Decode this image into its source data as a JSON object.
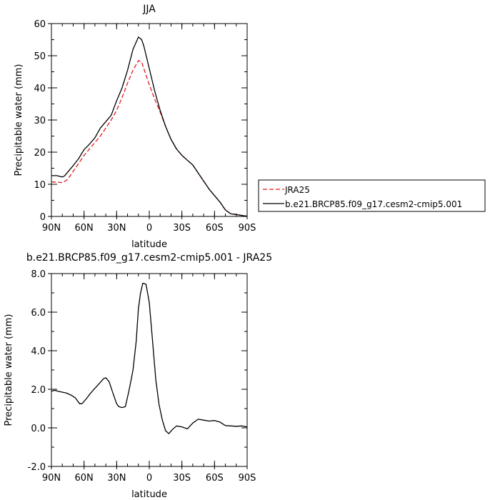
{
  "chart_data": [
    {
      "type": "line",
      "title": "JJA",
      "xlabel": "latitude",
      "ylabel": "Precipitable water (mm)",
      "xlim": [
        90,
        -90
      ],
      "ylim": [
        0,
        60
      ],
      "x_ticks": [
        90,
        60,
        30,
        0,
        -30,
        -60,
        -90
      ],
      "x_tick_labels": [
        "90N",
        "60N",
        "30N",
        "0",
        "30S",
        "60S",
        "90S"
      ],
      "y_ticks": [
        0,
        10,
        20,
        30,
        40,
        50,
        60
      ],
      "y_tick_labels": [
        "0",
        "10",
        "20",
        "30",
        "40",
        "50",
        "60"
      ],
      "legend_position": "outside-right",
      "series": [
        {
          "name": "JRA25",
          "color": "#e41a1c",
          "dash": "dashed",
          "x": [
            90,
            85,
            80,
            75,
            70,
            65,
            60,
            55,
            50,
            45,
            40,
            35,
            30,
            25,
            20,
            15,
            10,
            7,
            5,
            0,
            -5,
            -10,
            -15,
            -20,
            -25,
            -30,
            -35,
            -40,
            -45,
            -50,
            -55,
            -60,
            -65,
            -70,
            -75,
            -80,
            -85,
            -90
          ],
          "y": [
            10.7,
            10.7,
            10.5,
            11.5,
            14,
            16.5,
            19,
            21,
            23,
            25,
            27.5,
            30,
            33,
            37,
            41.5,
            45.5,
            48.5,
            48,
            46,
            41,
            36.5,
            32.5,
            28,
            24,
            21,
            19,
            17.5,
            16,
            13.5,
            11,
            8.5,
            6.5,
            4.5,
            2,
            0.8,
            0.6,
            0.3,
            0.1
          ]
        },
        {
          "name": "b.e21.BRCP85.f09_g17.cesm2-cmip5.001",
          "color": "#000000",
          "dash": "solid",
          "x": [
            90,
            85,
            80,
            78,
            75,
            70,
            65,
            60,
            55,
            50,
            45,
            40,
            35,
            30,
            25,
            20,
            15,
            10,
            7,
            5,
            0,
            -5,
            -10,
            -15,
            -20,
            -25,
            -30,
            -35,
            -40,
            -45,
            -50,
            -55,
            -60,
            -65,
            -70,
            -75,
            -80,
            -85,
            -90
          ],
          "y": [
            12.7,
            12.7,
            12.3,
            12.6,
            13.8,
            15.8,
            18,
            20.8,
            22.5,
            24.5,
            27.5,
            29.5,
            31.5,
            36,
            40,
            45.5,
            52,
            55.8,
            55,
            53,
            46,
            39,
            33,
            28,
            24,
            21,
            19,
            17.5,
            16,
            13.5,
            11,
            8.5,
            6.5,
            4.5,
            2,
            0.8,
            0.6,
            0.3,
            0.1
          ]
        }
      ]
    },
    {
      "type": "line",
      "title": "b.e21.BRCP85.f09_g17.cesm2-cmip5.001 - JRA25",
      "xlabel": "latitude",
      "ylabel": "Precipitable water (mm)",
      "xlim": [
        90,
        -90
      ],
      "ylim": [
        -2,
        8
      ],
      "x_ticks": [
        90,
        60,
        30,
        0,
        -30,
        -60,
        -90
      ],
      "x_tick_labels": [
        "90N",
        "60N",
        "30N",
        "0",
        "30S",
        "60S",
        "90S"
      ],
      "y_ticks": [
        -2,
        0,
        2,
        4,
        6,
        8
      ],
      "y_tick_labels": [
        "-2.0",
        "0.0",
        "2.0",
        "4.0",
        "6.0",
        "8.0"
      ],
      "series": [
        {
          "name": "",
          "color": "#000000",
          "dash": "solid",
          "x": [
            90,
            87,
            84,
            80,
            76,
            72,
            68,
            64,
            62,
            58,
            54,
            50,
            46,
            42,
            40,
            37,
            34,
            30,
            28,
            25,
            22,
            19,
            17,
            15,
            12,
            10,
            8,
            6,
            3,
            0,
            -3,
            -6,
            -9,
            -12,
            -15,
            -18,
            -21,
            -25,
            -30,
            -35,
            -40,
            -45,
            -50,
            -55,
            -60,
            -65,
            -70,
            -75,
            -80,
            -85,
            -90
          ],
          "y": [
            1.9,
            1.95,
            1.9,
            1.85,
            1.8,
            1.7,
            1.55,
            1.25,
            1.25,
            1.5,
            1.8,
            2.05,
            2.3,
            2.55,
            2.6,
            2.4,
            1.9,
            1.25,
            1.1,
            1.05,
            1.1,
            1.85,
            2.4,
            3.0,
            4.5,
            6.2,
            7.0,
            7.5,
            7.45,
            6.5,
            4.5,
            2.5,
            1.2,
            0.4,
            -0.15,
            -0.3,
            -0.1,
            0.1,
            0.05,
            -0.05,
            0.25,
            0.45,
            0.4,
            0.35,
            0.38,
            0.3,
            0.12,
            0.1,
            0.08,
            0.1,
            0.05
          ]
        }
      ]
    }
  ]
}
